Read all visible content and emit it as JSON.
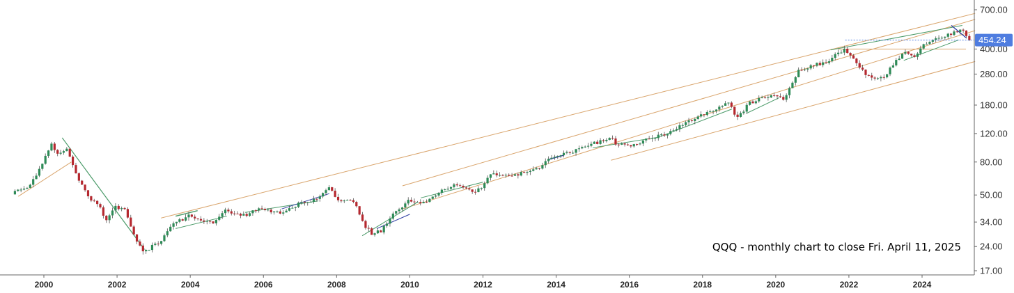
{
  "chart_data": {
    "type": "candlestick",
    "symbol": "QQQ",
    "annotation": "QQQ - monthly chart to close Fri. April 11, 2025",
    "y_scale": "log",
    "y_ticks": [
      "17.00",
      "24.00",
      "34.00",
      "50.00",
      "80.00",
      "120.00",
      "180.00",
      "280.00",
      "400.00",
      "700.00"
    ],
    "x_ticks": [
      "2000",
      "2002",
      "2004",
      "2006",
      "2008",
      "2010",
      "2012",
      "2014",
      "2016",
      "2018",
      "2020",
      "2022",
      "2024"
    ],
    "last_price": "454.24",
    "grid": false,
    "colors": {
      "up": "#2e8b57",
      "down": "#b5282f",
      "wick": "#555555",
      "channel": "#d9a46b",
      "trend_green": "#4a9a68",
      "trend_blue": "#2b3ba0",
      "last_price_badge": "#4f7de0"
    },
    "close_anchors": [
      [
        "1999-03",
        52
      ],
      [
        "1999-08",
        57
      ],
      [
        "1999-12",
        80
      ],
      [
        "2000-03",
        105
      ],
      [
        "2000-05",
        90
      ],
      [
        "2000-08",
        98
      ],
      [
        "2000-12",
        62
      ],
      [
        "2001-03",
        48
      ],
      [
        "2001-06",
        45
      ],
      [
        "2001-09",
        35
      ],
      [
        "2001-12",
        42
      ],
      [
        "2002-03",
        41
      ],
      [
        "2002-06",
        28
      ],
      [
        "2002-09",
        22
      ],
      [
        "2002-12",
        24
      ],
      [
        "2003-03",
        26
      ],
      [
        "2003-07",
        33
      ],
      [
        "2003-12",
        37
      ],
      [
        "2004-04",
        35
      ],
      [
        "2004-08",
        33
      ],
      [
        "2004-12",
        40
      ],
      [
        "2005-05",
        37
      ],
      [
        "2005-12",
        41
      ],
      [
        "2006-06",
        39
      ],
      [
        "2006-12",
        44
      ],
      [
        "2007-06",
        47
      ],
      [
        "2007-10",
        55
      ],
      [
        "2008-01",
        47
      ],
      [
        "2008-06",
        46
      ],
      [
        "2008-10",
        32
      ],
      [
        "2008-12",
        29
      ],
      [
        "2009-03",
        30
      ],
      [
        "2009-07",
        38
      ],
      [
        "2009-12",
        46
      ],
      [
        "2010-05",
        45
      ],
      [
        "2010-12",
        55
      ],
      [
        "2011-05",
        58
      ],
      [
        "2011-09",
        53
      ],
      [
        "2011-12",
        54
      ],
      [
        "2012-03",
        68
      ],
      [
        "2012-10",
        66
      ],
      [
        "2013-06",
        72
      ],
      [
        "2013-12",
        88
      ],
      [
        "2014-05",
        91
      ],
      [
        "2014-12",
        103
      ],
      [
        "2015-07",
        112
      ],
      [
        "2015-08",
        103
      ],
      [
        "2016-02",
        101
      ],
      [
        "2016-07",
        112
      ],
      [
        "2016-12",
        118
      ],
      [
        "2017-12",
        157
      ],
      [
        "2018-03",
        163
      ],
      [
        "2018-09",
        185
      ],
      [
        "2018-12",
        150
      ],
      [
        "2019-04",
        186
      ],
      [
        "2019-12",
        212
      ],
      [
        "2020-02",
        205
      ],
      [
        "2020-03",
        190
      ],
      [
        "2020-08",
        295
      ],
      [
        "2020-12",
        314
      ],
      [
        "2021-05",
        333
      ],
      [
        "2021-11",
        398
      ],
      [
        "2022-02",
        346
      ],
      [
        "2022-06",
        280
      ],
      [
        "2022-09",
        267
      ],
      [
        "2022-12",
        266
      ],
      [
        "2023-03",
        320
      ],
      [
        "2023-07",
        384
      ],
      [
        "2023-10",
        356
      ],
      [
        "2023-12",
        409
      ],
      [
        "2024-03",
        444
      ],
      [
        "2024-07",
        470
      ],
      [
        "2024-12",
        511
      ],
      [
        "2025-01",
        522
      ],
      [
        "2025-02",
        509
      ],
      [
        "2025-03",
        470
      ],
      [
        "2025-04",
        454.24
      ]
    ]
  }
}
